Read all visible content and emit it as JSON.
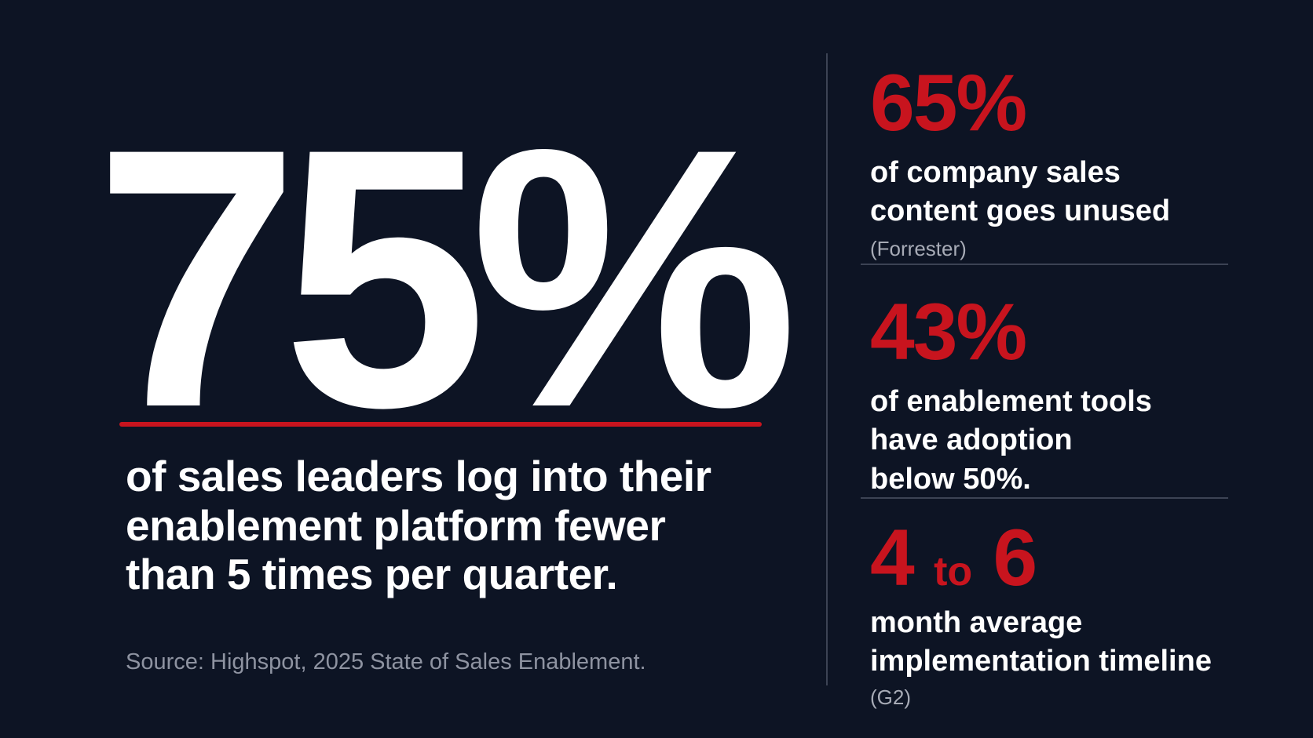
{
  "hero": {
    "value": "75%",
    "caption": "of sales leaders log into their enablement platform fewer than 5 times per quarter.",
    "source": "Source: Highspot, 2025 State of Sales Enablement."
  },
  "stats": [
    {
      "value": "65%",
      "description_lines": [
        "of company sales",
        "content goes unused"
      ],
      "source": "(Forrester)"
    },
    {
      "value": "43%",
      "description_lines": [
        "of enablement tools",
        "have adoption",
        "below 50%."
      ]
    },
    {
      "value_start": "4",
      "value_connector": "to",
      "value_end": "6",
      "description_lines": [
        "month average",
        "implementation timeline"
      ],
      "source": "(G2)"
    }
  ],
  "colors": {
    "background": "#0d1424",
    "accent_red": "#c8141e",
    "text_white": "#ffffff",
    "text_muted": "#8e93a1",
    "divider": "#3c4354"
  }
}
